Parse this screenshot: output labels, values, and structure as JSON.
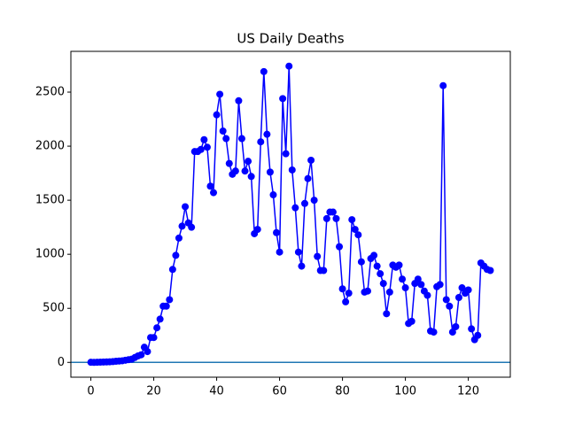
{
  "chart_data": {
    "type": "line",
    "title": "US Daily Deaths",
    "x": [
      0,
      1,
      2,
      3,
      4,
      5,
      6,
      7,
      8,
      9,
      10,
      11,
      12,
      13,
      14,
      15,
      16,
      17,
      18,
      19,
      20,
      21,
      22,
      23,
      24,
      25,
      26,
      27,
      28,
      29,
      30,
      31,
      32,
      33,
      34,
      35,
      36,
      37,
      38,
      39,
      40,
      41,
      42,
      43,
      44,
      45,
      46,
      47,
      48,
      49,
      50,
      51,
      52,
      53,
      54,
      55,
      56,
      57,
      58,
      59,
      60,
      61,
      62,
      63,
      64,
      65,
      66,
      67,
      68,
      69,
      70,
      71,
      72,
      73,
      74,
      75,
      76,
      77,
      78,
      79,
      80,
      81,
      82,
      83,
      84,
      85,
      86,
      87,
      88,
      89,
      90,
      91,
      92,
      93,
      94,
      95,
      96,
      97,
      98,
      99,
      100,
      101,
      102,
      103,
      104,
      105,
      106,
      107,
      108,
      109,
      110,
      111,
      112,
      113,
      114,
      115,
      116,
      117,
      118,
      119,
      120,
      121,
      122,
      123,
      124,
      125,
      126,
      127
    ],
    "series": [
      {
        "color": "#0000ff",
        "values": [
          1,
          0,
          1,
          2,
          3,
          4,
          5,
          7,
          10,
          12,
          15,
          20,
          25,
          30,
          45,
          60,
          70,
          140,
          100,
          230,
          230,
          320,
          400,
          520,
          520,
          580,
          860,
          990,
          1150,
          1260,
          1440,
          1290,
          1250,
          1950,
          1950,
          1970,
          2060,
          1990,
          1630,
          1570,
          2290,
          2480,
          2140,
          2070,
          1840,
          1740,
          1770,
          2420,
          2070,
          1770,
          1860,
          1720,
          1190,
          1230,
          2040,
          2690,
          2110,
          1760,
          1550,
          1200,
          1020,
          2440,
          1930,
          2740,
          1780,
          1430,
          1020,
          890,
          1470,
          1700,
          1870,
          1500,
          980,
          850,
          850,
          1330,
          1390,
          1390,
          1330,
          1070,
          680,
          560,
          640,
          1320,
          1230,
          1180,
          930,
          650,
          660,
          960,
          990,
          890,
          820,
          730,
          450,
          650,
          900,
          880,
          900,
          770,
          690,
          360,
          380,
          730,
          770,
          720,
          660,
          620,
          290,
          280,
          700,
          720,
          2560,
          580,
          520,
          280,
          330,
          600,
          690,
          640,
          670,
          310,
          210,
          250,
          920,
          890,
          860,
          850
        ]
      }
    ],
    "hline": {
      "value": 0,
      "color": "#1f77b4"
    },
    "xlim": [
      -6.35,
      133.35
    ],
    "ylim": [
      -137,
      2877
    ],
    "xticks": [
      0,
      20,
      40,
      60,
      80,
      100,
      120
    ],
    "yticks": [
      0,
      500,
      1000,
      1500,
      2000,
      2500
    ]
  }
}
